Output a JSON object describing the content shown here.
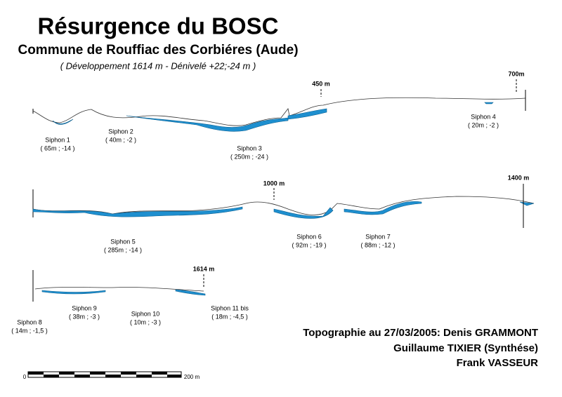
{
  "header": {
    "title": "Résurgence du BOSC",
    "subtitle": "Commune de Rouffiac des Corbiéres (Aude)",
    "details": "( Développement 1614 m - Dénivelé +22;-24 m )"
  },
  "markers": [
    "450 m",
    "700m",
    "1000 m",
    "1400 m",
    "1614 m"
  ],
  "siphons": [
    {
      "name": "Siphon 1",
      "info": "( 65m ; -14 )"
    },
    {
      "name": "Siphon 2",
      "info": "( 40m ; -2 )"
    },
    {
      "name": "Siphon 3",
      "info": "( 250m ; -24 )"
    },
    {
      "name": "Siphon 4",
      "info": "( 20m ; -2 )"
    },
    {
      "name": "Siphon 5",
      "info": "( 285m ; -14 )"
    },
    {
      "name": "Siphon 6",
      "info": "( 92m ; -19 )"
    },
    {
      "name": "Siphon 7",
      "info": "( 88m ; -12 )"
    },
    {
      "name": "Siphon 8",
      "info": "( 14m ; -1,5 )"
    },
    {
      "name": "Siphon 9",
      "info": "( 38m ; -3 )"
    },
    {
      "name": "Siphon 10",
      "info": "( 10m ; -3 )"
    },
    {
      "name": "Siphon 11 bis",
      "info": "( 18m ; -4,5 )"
    }
  ],
  "credits": [
    "Topographie au 27/03/2005: Denis GRAMMONT",
    "Guillaume TIXIER (Synthése)",
    "Frank VASSEUR"
  ],
  "scale": {
    "start": "0",
    "end": "200 m"
  }
}
